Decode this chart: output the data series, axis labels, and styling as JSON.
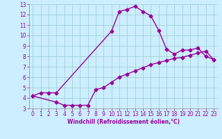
{
  "title": "",
  "xlabel": "Windchill (Refroidissement éolien,°C)",
  "xlim": [
    -0.5,
    23.5
  ],
  "ylim": [
    3,
    13
  ],
  "xticks": [
    0,
    1,
    2,
    3,
    4,
    5,
    6,
    7,
    8,
    9,
    10,
    11,
    12,
    13,
    14,
    15,
    16,
    17,
    18,
    19,
    20,
    21,
    22,
    23
  ],
  "yticks": [
    3,
    4,
    5,
    6,
    7,
    8,
    9,
    10,
    11,
    12,
    13
  ],
  "bg_color": "#cceeff",
  "grid_color": "#99cccc",
  "line_color": "#990099",
  "curve1_x": [
    0,
    1,
    2,
    3,
    10,
    11,
    12,
    13,
    14,
    15,
    16,
    17,
    18,
    19,
    20,
    21,
    22,
    23
  ],
  "curve1_y": [
    4.2,
    4.5,
    4.5,
    4.5,
    10.4,
    12.3,
    12.5,
    12.8,
    12.3,
    11.9,
    10.5,
    8.7,
    8.2,
    8.6,
    8.6,
    8.8,
    8.0,
    7.7
  ],
  "curve2_x": [
    0,
    3,
    4,
    5,
    6,
    7,
    8,
    9,
    10,
    11,
    12,
    13,
    14,
    15,
    16,
    17,
    18,
    19,
    20,
    21,
    22,
    23
  ],
  "curve2_y": [
    4.2,
    3.6,
    3.3,
    3.3,
    3.3,
    3.3,
    4.8,
    5.0,
    5.5,
    6.0,
    6.3,
    6.6,
    6.9,
    7.2,
    7.4,
    7.6,
    7.8,
    7.9,
    8.1,
    8.3,
    8.5,
    7.7
  ],
  "marker": "D",
  "markersize": 2.5,
  "linewidth": 1.0,
  "tick_fontsize": 5.5,
  "xlabel_fontsize": 5.5
}
